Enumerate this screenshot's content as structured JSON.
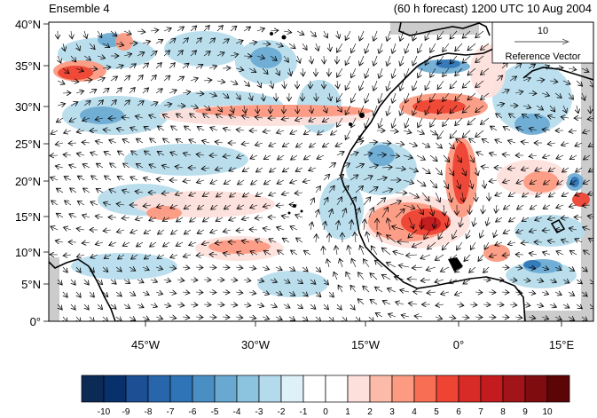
{
  "header": {
    "panel_title": "Ensemble 4",
    "forecast_label": "(60 h forecast) 1200 UTC 10 Aug 2004"
  },
  "map": {
    "lat_ticks": [
      "0°",
      "5°N",
      "10°N",
      "15°N",
      "20°N",
      "25°N",
      "30°N",
      "35°N",
      "40°N"
    ],
    "lon_ticks": [
      "45°W",
      "30°W",
      "15°W",
      "0°",
      "15°E"
    ],
    "reference_vector": {
      "magnitude_label": "10",
      "caption": "Reference Vector"
    }
  },
  "colorbar": {
    "labels": [
      "-10",
      "-9",
      "-8",
      "-7",
      "-6",
      "-5",
      "-4",
      "-3",
      "-2",
      "-1",
      "0",
      "1",
      "2",
      "3",
      "4",
      "5",
      "6",
      "7",
      "8",
      "9",
      "10"
    ],
    "colors": [
      "#0b2a55",
      "#08306b",
      "#1c4f93",
      "#2866ac",
      "#2f74b6",
      "#4a8fc4",
      "#69a9d1",
      "#8cc3de",
      "#b4dbec",
      "#def0f8",
      "#ffffff",
      "#ffffff",
      "#fde0dc",
      "#fcbba8",
      "#fc9a82",
      "#f86e55",
      "#ee4434",
      "#d82a26",
      "#c31b1e",
      "#a11519",
      "#7f0d0f",
      "#5c0506"
    ]
  },
  "colors": {
    "land_outline": "#000000",
    "missing_data": "#cccccc"
  }
}
